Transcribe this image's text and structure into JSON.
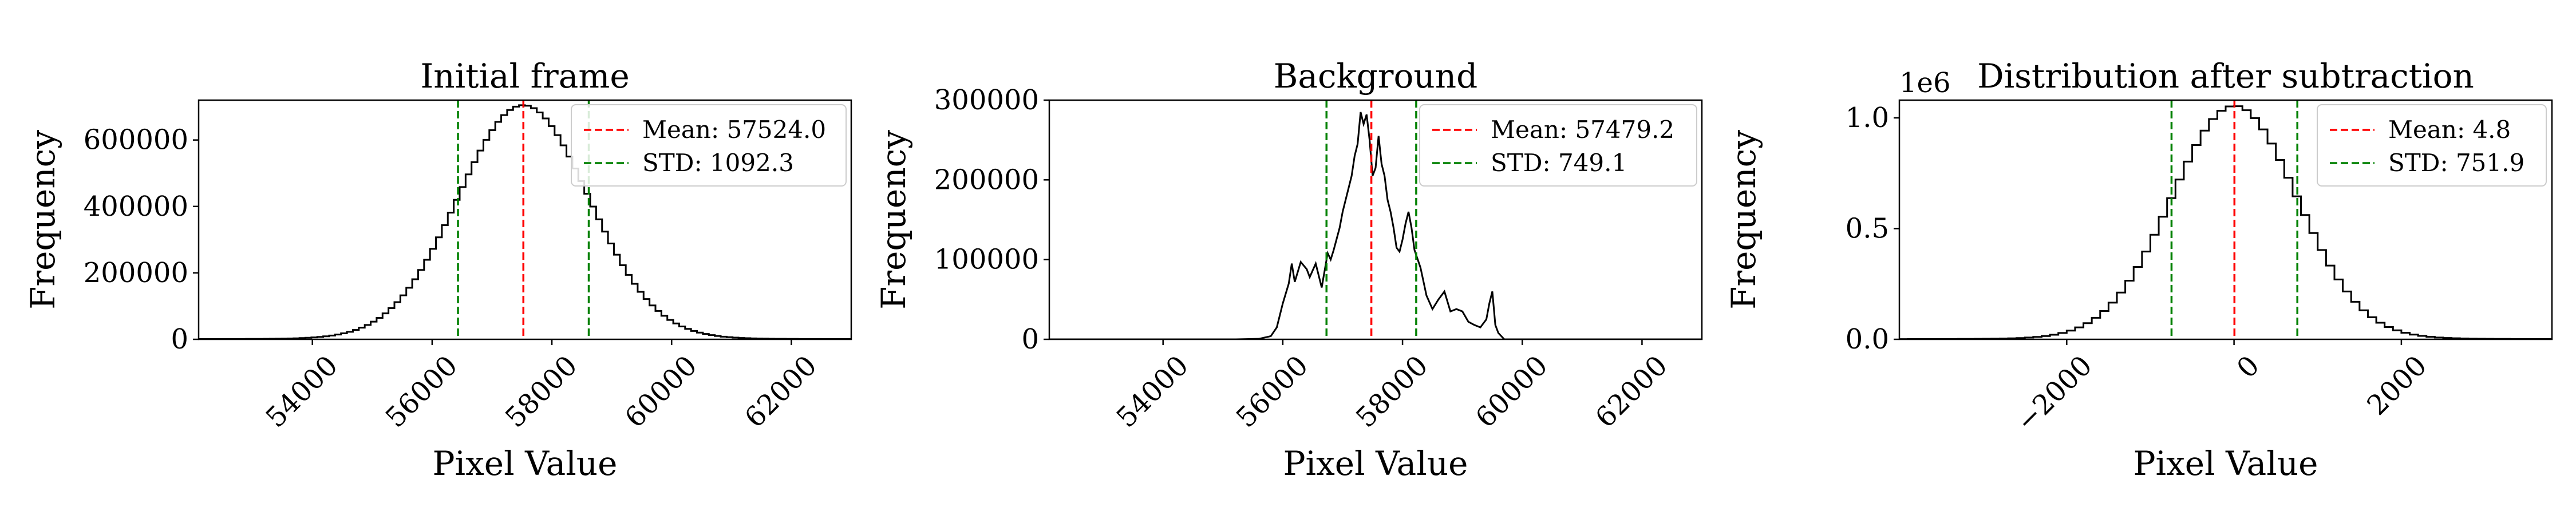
{
  "chart_data": [
    {
      "type": "line",
      "subtype": "histogram",
      "title": "Initial frame",
      "xlabel": "Pixel Value",
      "ylabel": "Frequency",
      "xlim": [
        52100,
        63000
      ],
      "ylim": [
        0,
        720000
      ],
      "xticks": [
        54000,
        56000,
        58000,
        60000,
        62000
      ],
      "yticks": [
        0,
        200000,
        400000,
        600000
      ],
      "xtick_labels": [
        "54000",
        "56000",
        "58000",
        "60000",
        "62000"
      ],
      "ytick_labels": [
        "0",
        "200000",
        "400000",
        "600000"
      ],
      "x_offset_label": "",
      "y_offset_label": "",
      "hist_shape": "gaussian",
      "hist_mu": 57524.0,
      "hist_sigma": 1092.3,
      "hist_peak": 700000,
      "hist_tail_amp": 5000,
      "hist_tail_scale": 3000,
      "hist_range": [
        52100,
        63000
      ],
      "hist_bins": 110,
      "vlines": [
        {
          "x": 57524.0,
          "color": "#ff0000",
          "label": "Mean: 57524.0"
        },
        {
          "x": 56431.7,
          "color": "#008000",
          "label": "STD: 1092.3"
        },
        {
          "x": 58616.3,
          "color": "#008000",
          "label": ""
        }
      ],
      "legend": [
        {
          "label": "Mean: 57524.0",
          "color": "#ff0000"
        },
        {
          "label": "STD: 1092.3",
          "color": "#008000"
        }
      ],
      "legend_loc": "upper right",
      "grid": false
    },
    {
      "type": "line",
      "subtype": "histogram",
      "title": "Background",
      "xlabel": "Pixel Value",
      "ylabel": "Frequency",
      "xlim": [
        52100,
        63000
      ],
      "ylim": [
        0,
        300000
      ],
      "xticks": [
        54000,
        56000,
        58000,
        60000,
        62000
      ],
      "yticks": [
        0,
        100000,
        200000,
        300000
      ],
      "xtick_labels": [
        "54000",
        "56000",
        "58000",
        "60000",
        "62000"
      ],
      "ytick_labels": [
        "0",
        "100000",
        "200000",
        "300000"
      ],
      "x_offset_label": "",
      "y_offset_label": "",
      "hist_shape": "points",
      "hist_points": [
        [
          52100,
          0
        ],
        [
          54300,
          0
        ],
        [
          55200,
          0
        ],
        [
          55600,
          600
        ],
        [
          55800,
          4000
        ],
        [
          55900,
          15000
        ],
        [
          56000,
          45000
        ],
        [
          56100,
          70000
        ],
        [
          56150,
          95000
        ],
        [
          56200,
          72000
        ],
        [
          56300,
          97000
        ],
        [
          56400,
          88000
        ],
        [
          56450,
          78000
        ],
        [
          56550,
          95000
        ],
        [
          56650,
          65000
        ],
        [
          56750,
          108000
        ],
        [
          56800,
          100000
        ],
        [
          56850,
          112000
        ],
        [
          56950,
          140000
        ],
        [
          57000,
          160000
        ],
        [
          57050,
          175000
        ],
        [
          57100,
          190000
        ],
        [
          57150,
          205000
        ],
        [
          57200,
          230000
        ],
        [
          57250,
          245000
        ],
        [
          57300,
          285000
        ],
        [
          57350,
          270000
        ],
        [
          57400,
          282000
        ],
        [
          57450,
          250000
        ],
        [
          57500,
          205000
        ],
        [
          57550,
          215000
        ],
        [
          57600,
          255000
        ],
        [
          57650,
          220000
        ],
        [
          57700,
          205000
        ],
        [
          57750,
          175000
        ],
        [
          57800,
          160000
        ],
        [
          57850,
          140000
        ],
        [
          57900,
          115000
        ],
        [
          57950,
          110000
        ],
        [
          58000,
          125000
        ],
        [
          58050,
          145000
        ],
        [
          58100,
          160000
        ],
        [
          58150,
          140000
        ],
        [
          58200,
          112000
        ],
        [
          58300,
          90000
        ],
        [
          58400,
          55000
        ],
        [
          58500,
          38000
        ],
        [
          58600,
          50000
        ],
        [
          58700,
          60000
        ],
        [
          58800,
          35000
        ],
        [
          58900,
          38000
        ],
        [
          59000,
          35000
        ],
        [
          59100,
          22000
        ],
        [
          59200,
          18000
        ],
        [
          59300,
          15000
        ],
        [
          59400,
          25000
        ],
        [
          59450,
          45000
        ],
        [
          59500,
          60000
        ],
        [
          59550,
          18000
        ],
        [
          59600,
          8000
        ],
        [
          59700,
          0
        ],
        [
          63000,
          0
        ]
      ],
      "vlines": [
        {
          "x": 57479.2,
          "color": "#ff0000",
          "label": "Mean: 57479.2"
        },
        {
          "x": 56730.1,
          "color": "#008000",
          "label": "STD: 749.1"
        },
        {
          "x": 58228.3,
          "color": "#008000",
          "label": ""
        }
      ],
      "legend": [
        {
          "label": "Mean: 57479.2",
          "color": "#ff0000"
        },
        {
          "label": "STD: 749.1",
          "color": "#008000"
        }
      ],
      "legend_loc": "upper right",
      "grid": false
    },
    {
      "type": "line",
      "subtype": "histogram",
      "title": "Distribution after subtraction",
      "xlabel": "Pixel Value",
      "ylabel": "Frequency",
      "xlim": [
        -4000,
        3800
      ],
      "ylim": [
        0,
        1080000
      ],
      "xticks": [
        -2000,
        0,
        2000
      ],
      "yticks": [
        0,
        500000,
        1000000
      ],
      "xtick_labels": [
        "−2000",
        "0",
        "2000"
      ],
      "ytick_labels": [
        "0.0",
        "0.5",
        "1.0"
      ],
      "x_offset_label": "",
      "y_offset_label": "1e6",
      "hist_shape": "gaussian",
      "hist_mu": 4.8,
      "hist_sigma": 751.9,
      "hist_peak": 1040000,
      "hist_tail_amp": 15000,
      "hist_tail_scale": 1500,
      "hist_range": [
        -4000,
        3800
      ],
      "hist_bins": 78,
      "vlines": [
        {
          "x": 4.8,
          "color": "#ff0000",
          "label": "Mean: 4.8"
        },
        {
          "x": -747.1,
          "color": "#008000",
          "label": "STD: 751.9"
        },
        {
          "x": 756.7,
          "color": "#008000",
          "label": ""
        }
      ],
      "legend": [
        {
          "label": "Mean: 4.8",
          "color": "#ff0000"
        },
        {
          "label": "STD: 751.9",
          "color": "#008000"
        }
      ],
      "legend_loc": "upper right",
      "grid": false
    }
  ]
}
